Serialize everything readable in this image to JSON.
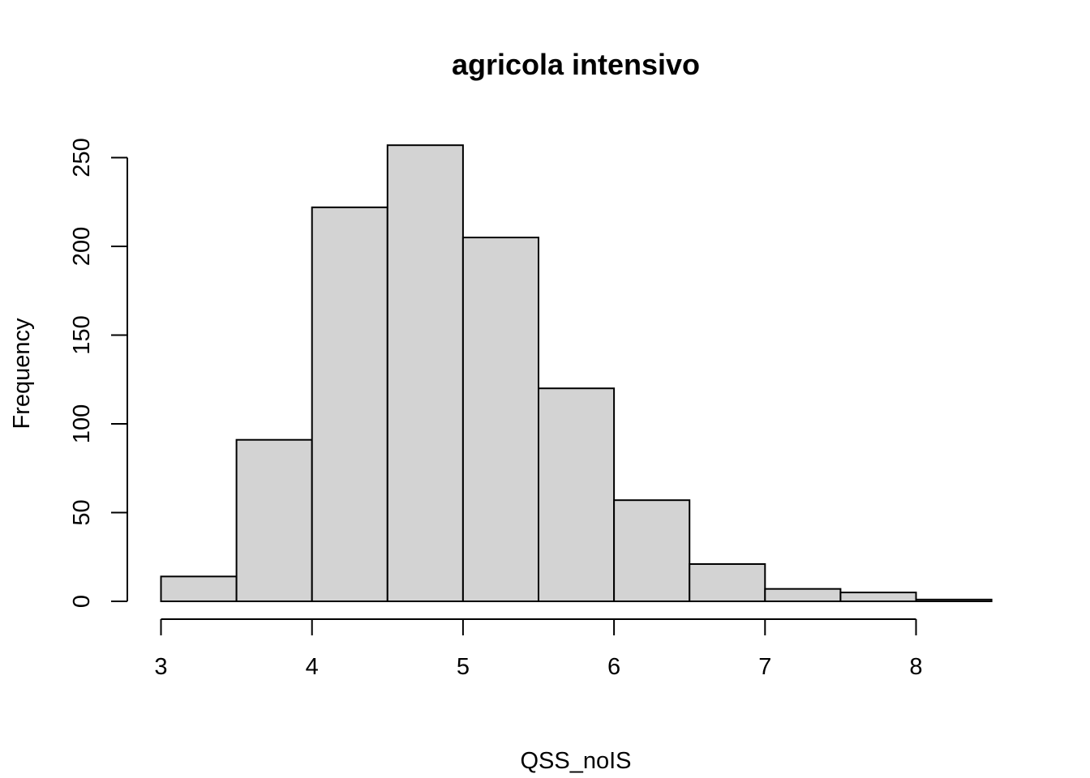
{
  "chart_data": {
    "type": "bar",
    "title": "agricola intensivo",
    "xlabel": "QSS_noIS",
    "ylabel": "Frequency",
    "bins": [
      {
        "from": 3.0,
        "to": 3.5,
        "count": 14
      },
      {
        "from": 3.5,
        "to": 4.0,
        "count": 91
      },
      {
        "from": 4.0,
        "to": 4.5,
        "count": 222
      },
      {
        "from": 4.5,
        "to": 5.0,
        "count": 257
      },
      {
        "from": 5.0,
        "to": 5.5,
        "count": 205
      },
      {
        "from": 5.5,
        "to": 6.0,
        "count": 120
      },
      {
        "from": 6.0,
        "to": 6.5,
        "count": 57
      },
      {
        "from": 6.5,
        "to": 7.0,
        "count": 21
      },
      {
        "from": 7.0,
        "to": 7.5,
        "count": 7
      },
      {
        "from": 7.5,
        "to": 8.0,
        "count": 5
      },
      {
        "from": 8.0,
        "to": 8.5,
        "count": 1
      }
    ],
    "x_ticks": [
      "3",
      "4",
      "5",
      "6",
      "7",
      "8"
    ],
    "y_ticks": [
      "0",
      "50",
      "100",
      "150",
      "200",
      "250"
    ],
    "xlim": [
      3,
      8.5
    ],
    "ylim": [
      0,
      257
    ],
    "bar_color": "#d3d3d3",
    "grid": false
  }
}
